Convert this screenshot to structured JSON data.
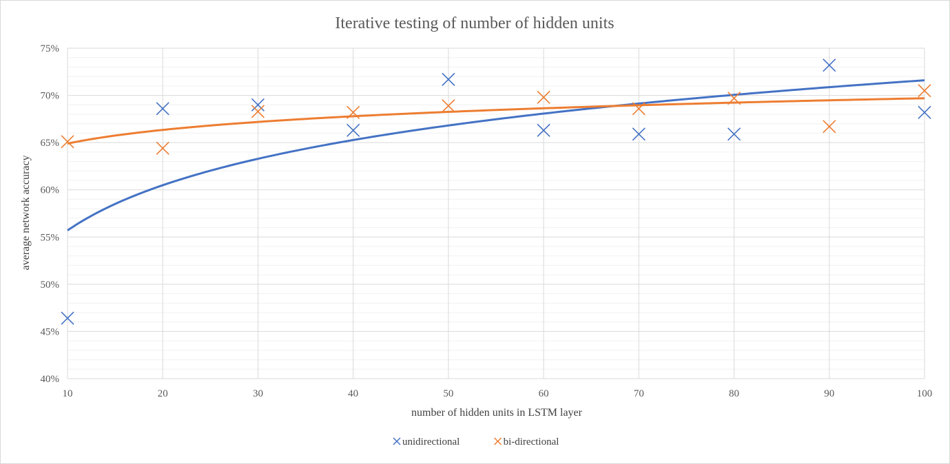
{
  "chart_data": {
    "type": "scatter",
    "title": "Iterative testing of number of hidden units",
    "xlabel": "number of hidden units in LSTM layer",
    "ylabel": "average network accuracy",
    "xlim": [
      10,
      100
    ],
    "ylim": [
      40,
      75
    ],
    "x_ticks": [
      10,
      20,
      30,
      40,
      50,
      60,
      70,
      80,
      90,
      100
    ],
    "y_ticks": [
      40,
      45,
      50,
      55,
      60,
      65,
      70,
      75
    ],
    "y_tick_format": "percent",
    "grid": true,
    "legend_position": "bottom",
    "series": [
      {
        "name": "unidirectional",
        "color": "#4472c4",
        "marker": "x",
        "points": [
          {
            "x": 10,
            "y": 46.4
          },
          {
            "x": 20,
            "y": 68.6
          },
          {
            "x": 30,
            "y": 69.0
          },
          {
            "x": 40,
            "y": 66.3
          },
          {
            "x": 50,
            "y": 71.7
          },
          {
            "x": 60,
            "y": 66.3
          },
          {
            "x": 70,
            "y": 65.9
          },
          {
            "x": 80,
            "y": 65.9
          },
          {
            "x": 90,
            "y": 73.2
          },
          {
            "x": 100,
            "y": 68.2
          }
        ],
        "trendline": {
          "type": "logarithmic",
          "y_at_x10": 55.7,
          "y_at_x100": 71.6
        }
      },
      {
        "name": "bi-directional",
        "color": "#ed7d31",
        "marker": "x",
        "points": [
          {
            "x": 10,
            "y": 65.1
          },
          {
            "x": 20,
            "y": 64.4
          },
          {
            "x": 30,
            "y": 68.3
          },
          {
            "x": 40,
            "y": 68.2
          },
          {
            "x": 50,
            "y": 68.9
          },
          {
            "x": 60,
            "y": 69.8
          },
          {
            "x": 70,
            "y": 68.6
          },
          {
            "x": 80,
            "y": 69.7
          },
          {
            "x": 90,
            "y": 66.7
          },
          {
            "x": 100,
            "y": 70.5
          }
        ],
        "trendline": {
          "type": "logarithmic",
          "y_at_x10": 64.9,
          "y_at_x100": 69.7
        }
      }
    ]
  }
}
